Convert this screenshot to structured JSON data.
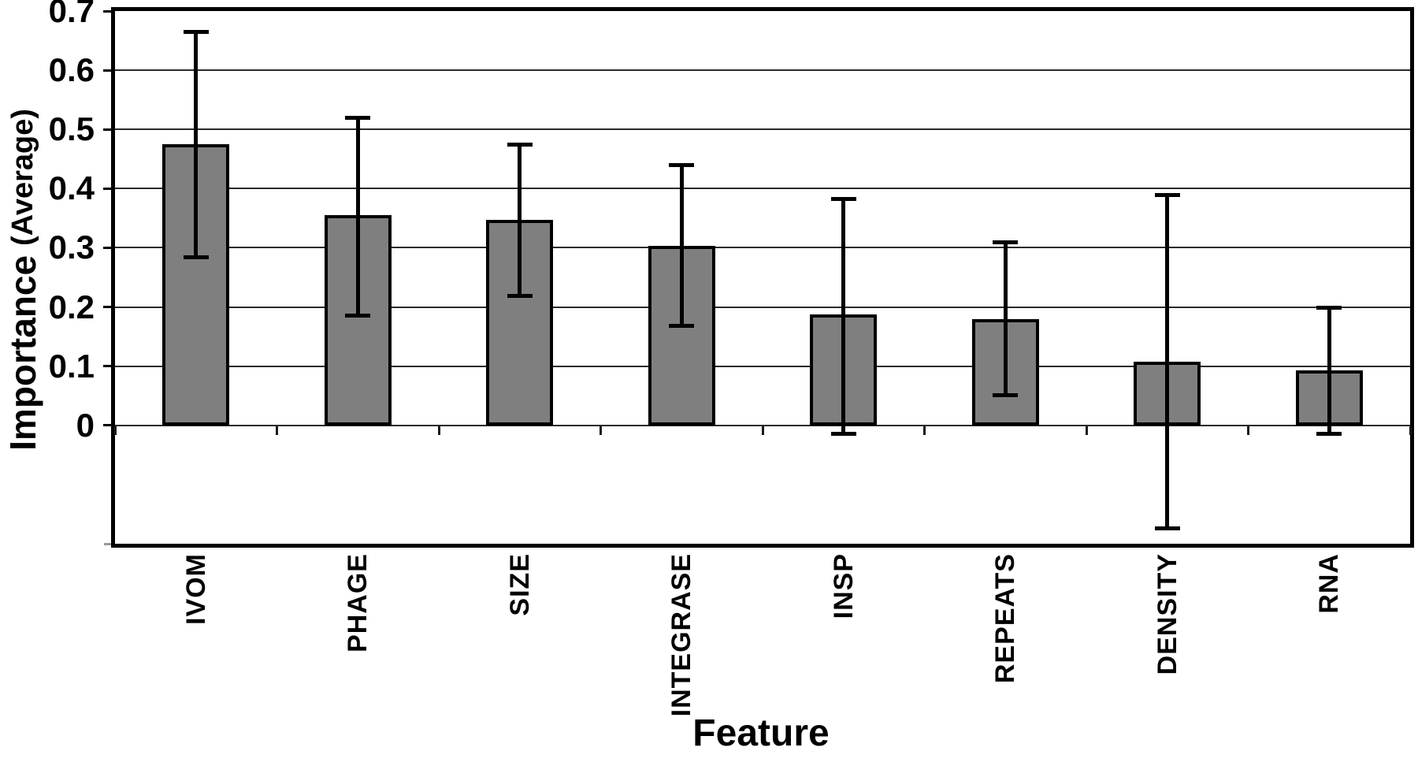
{
  "chart_data": {
    "type": "bar",
    "title": "",
    "xlabel": "Feature",
    "ylabel": "Importance (Average)",
    "ylabel_parts": {
      "main": "Importance",
      "sub": "(Average)"
    },
    "categories": [
      "IVOM",
      "PHAGE",
      "SIZE",
      "INTEGRASE",
      "INSP",
      "REPEATS",
      "DENSITY",
      "RNA"
    ],
    "series": [
      {
        "name": "Importance (Average)",
        "values": [
          0.475,
          0.355,
          0.347,
          0.303,
          0.188,
          0.179,
          0.108,
          0.093
        ],
        "error_low": [
          0.283,
          0.185,
          0.218,
          0.168,
          -0.015,
          0.05,
          -0.175,
          -0.015
        ],
        "error_high": [
          0.665,
          0.52,
          0.475,
          0.44,
          0.383,
          0.31,
          0.39,
          0.2
        ]
      }
    ],
    "ylim": [
      -0.2,
      0.7
    ],
    "ytick_values": [
      0,
      0.1,
      0.2,
      0.3,
      0.4,
      0.5,
      0.6,
      0.7
    ],
    "ytick_labels": [
      "0",
      "0.1",
      "0.2",
      "0.3",
      "0.4",
      "0.5",
      "0.6",
      "0.7"
    ],
    "gridline_values": [
      0,
      0.1,
      0.2,
      0.3,
      0.4,
      0.5,
      0.6
    ],
    "extra_tick_value": -0.2,
    "grid": true,
    "legend_position": "none",
    "bar_color": "#7f7f7f",
    "bar_border_color": "#000000",
    "errorbar_color": "#000000",
    "frame_color": "#000000",
    "background_color": "#ffffff"
  }
}
